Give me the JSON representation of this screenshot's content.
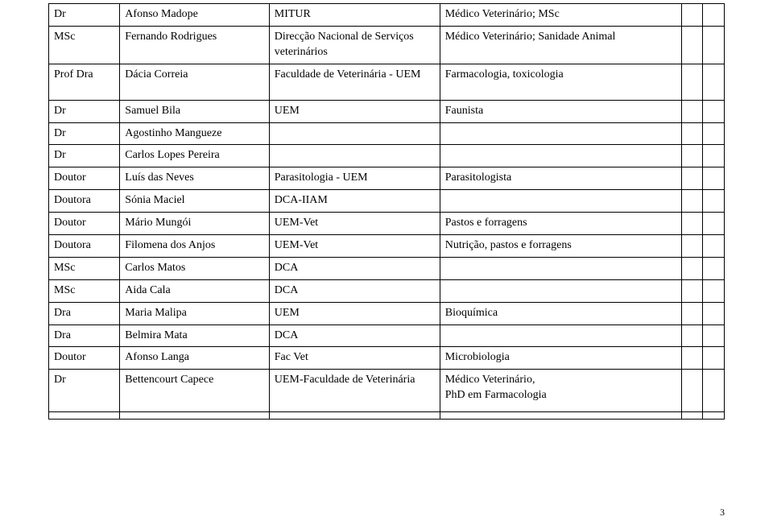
{
  "page_number": "3",
  "rows": [
    {
      "title": "Dr",
      "name": "Afonso Madope",
      "inst": "MITUR",
      "spec": "Médico Veterinário; MSc"
    },
    {
      "title": "MSc",
      "name": "Fernando Rodrigues",
      "inst": "Direcção Nacional de Serviços veterinários",
      "spec": "Médico Veterinário; Sanidade Animal"
    },
    {
      "title": "Prof Dra",
      "name": "Dácia Correia",
      "inst": "Faculdade de Veterinária - UEM",
      "spec": "Farmacologia, toxicologia"
    },
    {
      "title": "Dr",
      "name": "Samuel Bila",
      "inst": "UEM",
      "spec": "Faunista"
    },
    {
      "title": "Dr",
      "name": "Agostinho Mangueze",
      "inst": "",
      "spec": ""
    },
    {
      "title": "Dr",
      "name": "Carlos Lopes Pereira",
      "inst": "",
      "spec": ""
    },
    {
      "title": "Doutor",
      "name": "Luís das Neves",
      "inst": "Parasitologia - UEM",
      "spec": "Parasitologista"
    },
    {
      "title": "Doutora",
      "name": "Sónia Maciel",
      "inst": "DCA-IIAM",
      "spec": ""
    },
    {
      "title": "Doutor",
      "name": "Mário Mungói",
      "inst": "UEM-Vet",
      "spec": "Pastos e forragens"
    },
    {
      "title": "Doutora",
      "name": "Filomena dos Anjos",
      "inst": "UEM-Vet",
      "spec": "Nutrição, pastos e forragens"
    },
    {
      "title": "MSc",
      "name": "Carlos Matos",
      "inst": "DCA",
      "spec": ""
    },
    {
      "title": "MSc",
      "name": "Aida Cala",
      "inst": "DCA",
      "spec": ""
    },
    {
      "title": "Dra",
      "name": "Maria Malipa",
      "inst": "UEM",
      "spec": "Bioquímica"
    },
    {
      "title": "Dra",
      "name": "Belmira Mata",
      "inst": "DCA",
      "spec": ""
    },
    {
      "title": "Doutor",
      "name": "Afonso Langa",
      "inst": "Fac Vet",
      "spec": "Microbiologia"
    },
    {
      "title": "Dr",
      "name": "Bettencourt Capece",
      "inst": "UEM-Faculdade de Veterinária",
      "spec": "Médico Veterinário,\nPhD em Farmacologia"
    },
    {
      "title": "",
      "name": "",
      "inst": "",
      "spec": ""
    }
  ]
}
